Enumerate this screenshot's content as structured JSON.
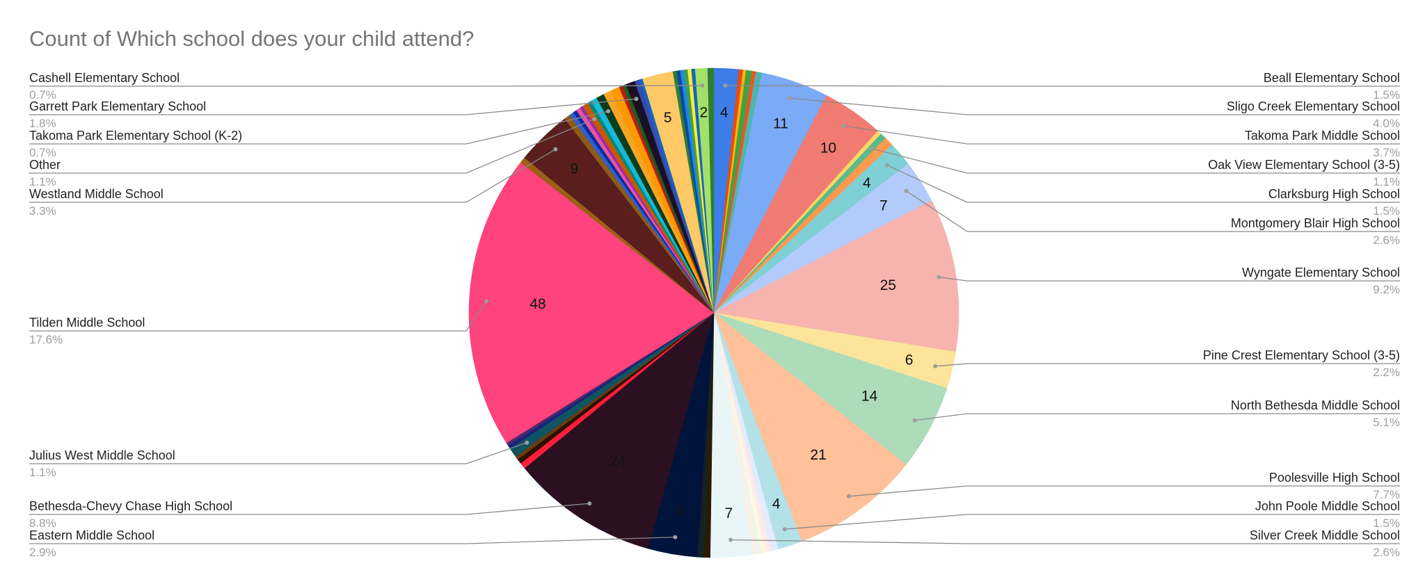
{
  "chart_data": {
    "type": "pie",
    "title": "Count of Which school does your child attend?",
    "slices": [
      {
        "name": "Beall Elementary School",
        "value": 4,
        "pct": "1.5%",
        "color": "#3d7de8",
        "show_value": true,
        "label_side": "right"
      },
      {
        "name": "",
        "value": 0.7,
        "color": "#e64a19"
      },
      {
        "name": "",
        "value": 0.5,
        "color": "#ffb300"
      },
      {
        "name": "",
        "value": 1.0,
        "color": "#43a047"
      },
      {
        "name": "",
        "value": 0.6,
        "color": "#f4511e"
      },
      {
        "name": "",
        "value": 1.0,
        "color": "#4db6ac"
      },
      {
        "name": "Sligo Creek Elementary School",
        "value": 11,
        "pct": "4.0%",
        "color": "#7baaf7",
        "show_value": true,
        "label_side": "right"
      },
      {
        "name": "Takoma Park Middle School",
        "value": 10,
        "pct": "3.7%",
        "color": "#f07b72",
        "show_value": true,
        "label_side": "right"
      },
      {
        "name": "",
        "value": 0.7,
        "color": "#fdd663"
      },
      {
        "name": "Oak View Elementary School (3-5)",
        "value": 1.0,
        "pct": "1.1%",
        "color": "#57bb8a",
        "show_value": false,
        "label_side": "right"
      },
      {
        "name": "",
        "value": 1.5,
        "color": "#ff994d"
      },
      {
        "name": "Clarksburg High School",
        "value": 4,
        "pct": "1.5%",
        "color": "#7fd0d5",
        "show_value": true,
        "label_side": "right"
      },
      {
        "name": "Montgomery Blair High School",
        "value": 7,
        "pct": "2.6%",
        "color": "#b3cbfa",
        "show_value": true,
        "label_side": "right"
      },
      {
        "name": "Wyngate Elementary School",
        "value": 25,
        "pct": "9.2%",
        "color": "#f7b3ae",
        "show_value": true,
        "label_side": "right"
      },
      {
        "name": "Pine Crest Elementary School (3-5)",
        "value": 6,
        "pct": "2.2%",
        "color": "#fde49b",
        "show_value": true,
        "label_side": "right"
      },
      {
        "name": "North Bethesda Middle School",
        "value": 14,
        "pct": "5.1%",
        "color": "#acdcba",
        "show_value": true,
        "label_side": "right"
      },
      {
        "name": "Poolesville High School",
        "value": 21,
        "pct": "7.7%",
        "color": "#ffc09a",
        "show_value": true,
        "label_side": "right"
      },
      {
        "name": "John Poole Middle School",
        "value": 4,
        "pct": "1.5%",
        "color": "#b2e2e8",
        "show_value": true,
        "label_side": "right"
      },
      {
        "name": "",
        "value": 1.2,
        "color": "#e3ebfd"
      },
      {
        "name": "",
        "value": 0.8,
        "color": "#fdeaea"
      },
      {
        "name": "",
        "value": 0.8,
        "color": "#fff7e0"
      },
      {
        "name": "",
        "value": 0.6,
        "color": "#eaf6ee"
      },
      {
        "name": "",
        "value": 0.6,
        "color": "#fff0e6"
      },
      {
        "name": "Silver Creek Middle School",
        "value": 7,
        "pct": "2.6%",
        "color": "#e9f6f7",
        "show_value": true,
        "label_side": "right"
      },
      {
        "name": "",
        "value": 1.0,
        "color": "#2d1a06"
      },
      {
        "name": "",
        "value": 0.6,
        "color": "#0d2a1a"
      },
      {
        "name": "",
        "value": 0.5,
        "color": "#1a1a2e"
      },
      {
        "name": "Eastern Middle School",
        "value": 8,
        "pct": "2.9%",
        "color": "#00133b",
        "show_value": true,
        "label_side": "left"
      },
      {
        "name": "Bethesda-Chevy Chase High School",
        "value": 24,
        "pct": "8.8%",
        "color": "#2a1020",
        "show_value": true,
        "label_side": "left"
      },
      {
        "name": "",
        "value": 1.0,
        "color": "#ff1f3a"
      },
      {
        "name": "",
        "value": 0.8,
        "color": "#2b1100"
      },
      {
        "name": "",
        "value": 0.6,
        "color": "#6b3a12"
      },
      {
        "name": "Julius West Middle School",
        "value": 1.5,
        "pct": "1.1%",
        "color": "#0e5561",
        "show_value": false,
        "label_side": "left"
      },
      {
        "name": "",
        "value": 0.6,
        "color": "#1a237e"
      },
      {
        "name": "",
        "value": 0.5,
        "color": "#4a2a6a"
      },
      {
        "name": "Tilden Middle School",
        "value": 48,
        "pct": "17.6%",
        "color": "#ff437c",
        "show_value": true,
        "label_side": "left"
      },
      {
        "name": "",
        "value": 1.0,
        "color": "#9b5f16"
      },
      {
        "name": "Westland Middle School",
        "value": 9,
        "pct": "3.3%",
        "color": "#5b1e1e",
        "show_value": true,
        "label_side": "left"
      },
      {
        "name": "",
        "value": 1.0,
        "color": "#8e5a16"
      },
      {
        "name": "",
        "value": 0.7,
        "color": "#2f5fc9"
      },
      {
        "name": "",
        "value": 0.6,
        "color": "#0b2c9e"
      },
      {
        "name": "",
        "value": 0.7,
        "color": "#e8559b"
      },
      {
        "name": "",
        "value": 0.5,
        "color": "#9c27b0"
      },
      {
        "name": "Other",
        "value": 1.0,
        "pct": "1.1%",
        "color": "#c45a00",
        "show_value": false,
        "label_side": "left"
      },
      {
        "name": "",
        "value": 0.6,
        "color": "#00897b"
      },
      {
        "name": "",
        "value": 1.0,
        "color": "#1ab8d8"
      },
      {
        "name": "Takoma Park Elementary School (K-2)",
        "value": 1.3,
        "pct": "0.7%",
        "color": "#0b3d1c",
        "show_value": false,
        "label_side": "left"
      },
      {
        "name": "",
        "value": 1.2,
        "color": "#f5a524"
      },
      {
        "name": "",
        "value": 1.5,
        "color": "#ff9800"
      },
      {
        "name": "",
        "value": 0.6,
        "color": "#b71c1c"
      },
      {
        "name": "",
        "value": 0.6,
        "color": "#1b5e20"
      },
      {
        "name": "Garrett Park Elementary School",
        "value": 1.5,
        "pct": "1.8%",
        "color": "#1a1024",
        "show_value": false,
        "label_side": "left"
      },
      {
        "name": "",
        "value": 0.7,
        "color": "#3949ab"
      },
      {
        "name": "",
        "value": 0.6,
        "color": "#1565c0"
      },
      {
        "name": "",
        "value": 5,
        "color": "#ffc966",
        "show_value": true
      },
      {
        "name": "",
        "value": 0.6,
        "color": "#2e7d32"
      },
      {
        "name": "",
        "value": 0.6,
        "color": "#0d47a1"
      },
      {
        "name": "",
        "value": 0.6,
        "color": "#1e88e5"
      },
      {
        "name": "",
        "value": 0.6,
        "color": "#43a047"
      },
      {
        "name": "",
        "value": 0.6,
        "color": "#ffeb3b"
      },
      {
        "name": "",
        "value": 0.6,
        "color": "#1565c0"
      },
      {
        "name": "Cashell Elementary School",
        "value": 2,
        "pct": "0.7%",
        "color": "#a2e06a",
        "show_value": true,
        "label_side": "left"
      },
      {
        "name": "",
        "value": 1.0,
        "color": "#2e7d32"
      }
    ],
    "left_labels": [
      {
        "name": "Cashell Elementary School",
        "pct": "0.7%"
      },
      {
        "name": "Garrett Park Elementary School",
        "pct": "1.8%"
      },
      {
        "name": "Takoma Park Elementary School (K-2)",
        "pct": "0.7%"
      },
      {
        "name": "Other",
        "pct": "1.1%"
      },
      {
        "name": "Westland Middle School",
        "pct": "3.3%"
      },
      {
        "name": "Tilden Middle School",
        "pct": "17.6%"
      },
      {
        "name": "Julius West Middle School",
        "pct": "1.1%"
      },
      {
        "name": "Bethesda-Chevy Chase High School",
        "pct": "8.8%"
      },
      {
        "name": "Eastern Middle School",
        "pct": "2.9%"
      }
    ],
    "right_labels": [
      {
        "name": "Beall Elementary School",
        "pct": "1.5%"
      },
      {
        "name": "Sligo Creek Elementary School",
        "pct": "4.0%"
      },
      {
        "name": "Takoma Park Middle School",
        "pct": "3.7%"
      },
      {
        "name": "Oak View Elementary School (3-5)",
        "pct": "1.1%"
      },
      {
        "name": "Clarksburg High School",
        "pct": "1.5%"
      },
      {
        "name": "Montgomery Blair High School",
        "pct": "2.6%"
      },
      {
        "name": "Wyngate Elementary School",
        "pct": "9.2%"
      },
      {
        "name": "Pine Crest Elementary School (3-5)",
        "pct": "2.2%"
      },
      {
        "name": "North Bethesda Middle School",
        "pct": "5.1%"
      },
      {
        "name": "Poolesville High School",
        "pct": "7.7%"
      },
      {
        "name": "John Poole Middle School",
        "pct": "1.5%"
      },
      {
        "name": "Silver Creek Middle School",
        "pct": "2.6%"
      }
    ],
    "legend": "none",
    "label_style": "leader-lines"
  }
}
